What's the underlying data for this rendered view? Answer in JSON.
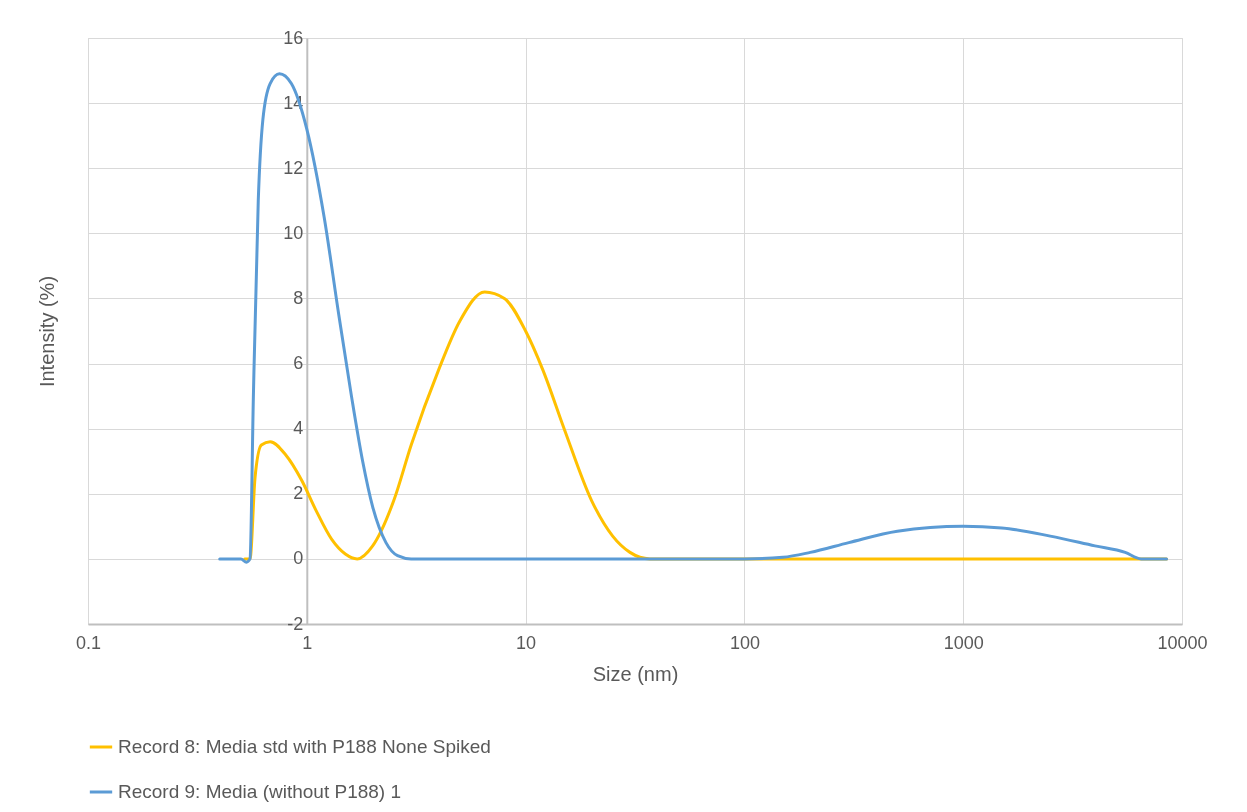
{
  "chart_data": {
    "type": "line",
    "xlabel": "Size (nm)",
    "ylabel": "Intensity (%)",
    "log": "x",
    "xlim": [
      0.1,
      10000
    ],
    "xticks": [
      0.1,
      1,
      10,
      100,
      1000,
      10000
    ],
    "ylim": [
      -2,
      16
    ],
    "yticks": [
      -2,
      0,
      2,
      4,
      6,
      8,
      10,
      12,
      14,
      16
    ],
    "grid": true,
    "legend": "bottom",
    "series": [
      {
        "name": "Record 8: Media std with P188 None Spiked",
        "color": "#ffc000",
        "x": [
          0.52,
          0.55,
          0.58,
          0.62,
          0.68,
          0.8,
          0.95,
          1.1,
          1.3,
          1.5,
          1.7,
          2.0,
          2.5,
          3,
          4,
          5,
          6.5,
          8,
          10,
          12,
          15,
          20,
          25,
          30,
          37,
          100,
          1000,
          8500
        ],
        "values": [
          0,
          0,
          2.5,
          3.5,
          3.6,
          3.2,
          2.4,
          1.5,
          0.6,
          0.15,
          0,
          0.4,
          1.8,
          3.5,
          5.8,
          7.3,
          8.2,
          8.0,
          7.0,
          5.8,
          4.0,
          1.8,
          0.7,
          0.2,
          0,
          0,
          0,
          0
        ]
      },
      {
        "name": "Record 9: Media (without P188) 1",
        "color": "#5b9bd5",
        "x": [
          0.4,
          0.5,
          0.53,
          0.55,
          0.57,
          0.6,
          0.63,
          0.68,
          0.75,
          0.85,
          1.0,
          1.2,
          1.4,
          1.6,
          1.8,
          2.0,
          2.3,
          2.6,
          3,
          10,
          100,
          150,
          200,
          300,
          500,
          1000,
          1500,
          2500,
          4000,
          5500,
          6500,
          8500
        ],
        "values": [
          0,
          0,
          -0.1,
          0,
          5,
          11,
          13.5,
          14.6,
          14.9,
          14.6,
          13.2,
          10.5,
          7.5,
          5,
          3,
          1.6,
          0.5,
          0.1,
          0,
          0,
          0,
          0.05,
          0.2,
          0.5,
          0.85,
          1.0,
          0.95,
          0.7,
          0.4,
          0.2,
          0,
          0
        ]
      }
    ]
  }
}
